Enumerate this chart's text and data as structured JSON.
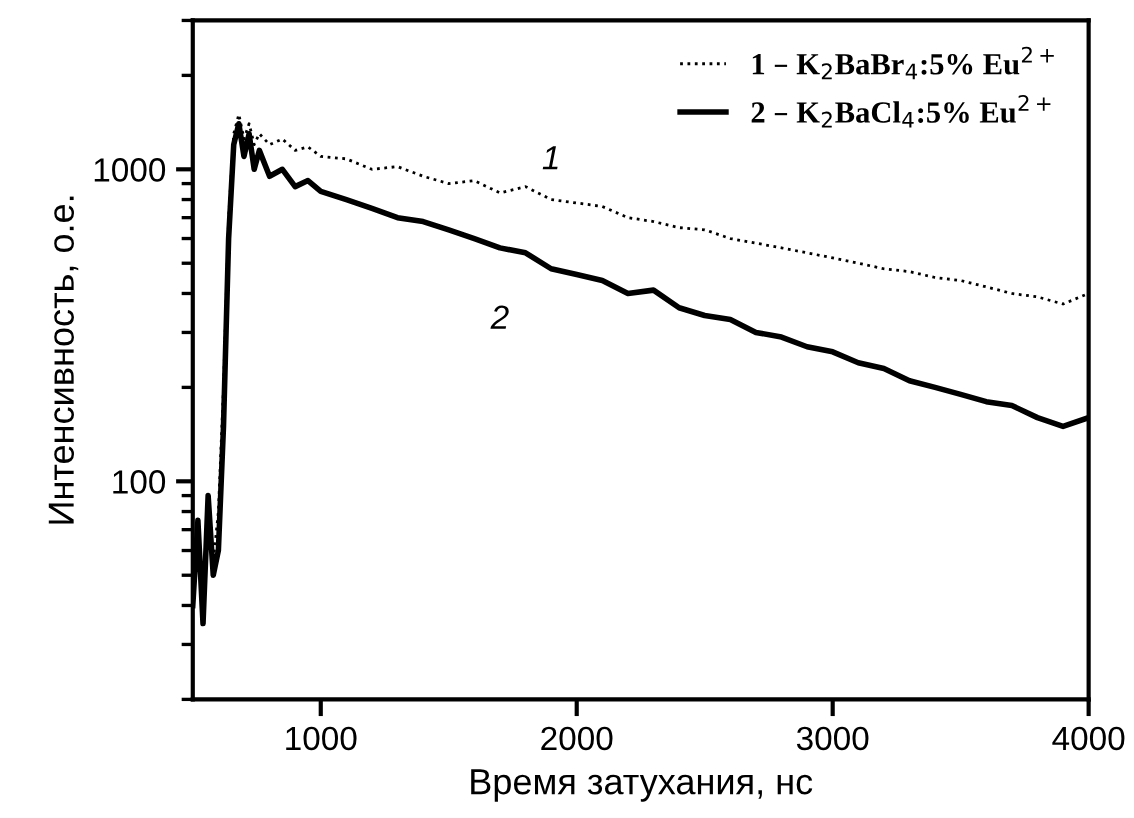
{
  "chart_data": {
    "type": "line",
    "xlabel": "Время затухания, нс",
    "ylabel": "Интенсивность, о.е.",
    "x": [
      500,
      520,
      540,
      560,
      580,
      600,
      620,
      640,
      660,
      680,
      700,
      720,
      740,
      760,
      800,
      850,
      900,
      950,
      1000,
      1100,
      1200,
      1300,
      1400,
      1500,
      1600,
      1700,
      1800,
      1900,
      2000,
      2100,
      2200,
      2300,
      2400,
      2500,
      2600,
      2700,
      2800,
      2900,
      3000,
      3100,
      3200,
      3300,
      3400,
      3500,
      3600,
      3700,
      3800,
      3900,
      4000
    ],
    "series": [
      {
        "name": "1 – K$_{2}$BaBr$_{4}$:5% Eu$^{2+}$",
        "color": "#000000",
        "line_style": "dotted",
        "values": [
          45,
          60,
          40,
          70,
          55,
          80,
          200,
          700,
          1300,
          1500,
          1250,
          1400,
          1200,
          1300,
          1200,
          1250,
          1150,
          1180,
          1100,
          1080,
          1000,
          1020,
          950,
          900,
          920,
          840,
          880,
          800,
          780,
          760,
          700,
          680,
          650,
          640,
          600,
          580,
          560,
          540,
          520,
          500,
          480,
          470,
          450,
          440,
          420,
          400,
          390,
          370,
          400
        ]
      },
      {
        "name": "2 – K$_{2}$BaCl$_{4}$:5% Eu$^{2+}$",
        "color": "#000000",
        "line_style": "solid",
        "values": [
          40,
          75,
          35,
          90,
          50,
          60,
          150,
          600,
          1200,
          1400,
          1100,
          1300,
          1000,
          1150,
          950,
          1000,
          880,
          920,
          850,
          800,
          750,
          700,
          680,
          640,
          600,
          560,
          540,
          480,
          460,
          440,
          400,
          410,
          360,
          340,
          330,
          300,
          290,
          270,
          260,
          240,
          230,
          210,
          200,
          190,
          180,
          175,
          160,
          150,
          160
        ]
      }
    ],
    "log": "y",
    "xlim": [
      500,
      4000
    ],
    "xticks": [
      1000,
      2000,
      3000,
      4000
    ],
    "ylim": [
      20,
      3000
    ],
    "yticks": [
      100,
      1000
    ],
    "grid": false,
    "legend": "top right",
    "annotations": [
      {
        "text": "1",
        "x": 1900,
        "y": 800
      },
      {
        "text": "2",
        "x": 1700,
        "y": 560
      }
    ]
  }
}
